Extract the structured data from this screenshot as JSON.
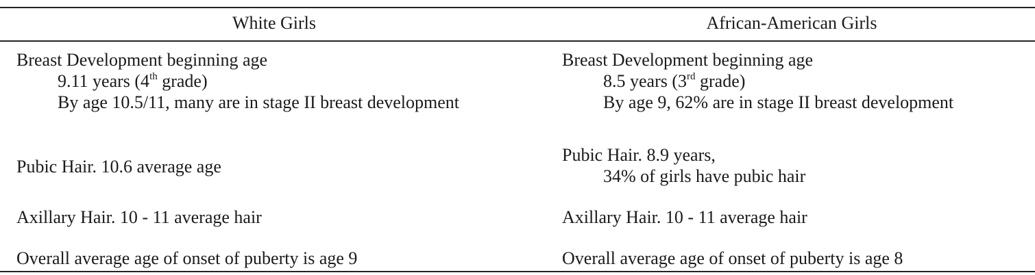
{
  "headers": {
    "white": "White Girls",
    "african_american": "African-American Girls"
  },
  "white": {
    "breast_title": "Breast Development beginning age",
    "breast_age_pre": "9.11 years (4",
    "breast_age_sup": "th",
    "breast_age_post": " grade)",
    "breast_stage": "By age 10.5/11, many are in stage II breast development",
    "pubic": "Pubic Hair. 10.6 average age",
    "axillary": "Axillary Hair. 10 - 11 average hair",
    "overall": "Overall average age of onset of puberty is age 9"
  },
  "african_american": {
    "breast_title": "Breast Development beginning age",
    "breast_age_pre": "8.5 years (3",
    "breast_age_sup": "rd",
    "breast_age_post": " grade)",
    "breast_stage": "By age 9, 62% are in stage II breast development",
    "pubic_title": "Pubic Hair. 8.9 years,",
    "pubic_detail": "34% of girls have pubic hair",
    "axillary": "Axillary Hair. 10 - 11 average hair",
    "overall": "Overall average age of onset of puberty is age 8"
  }
}
